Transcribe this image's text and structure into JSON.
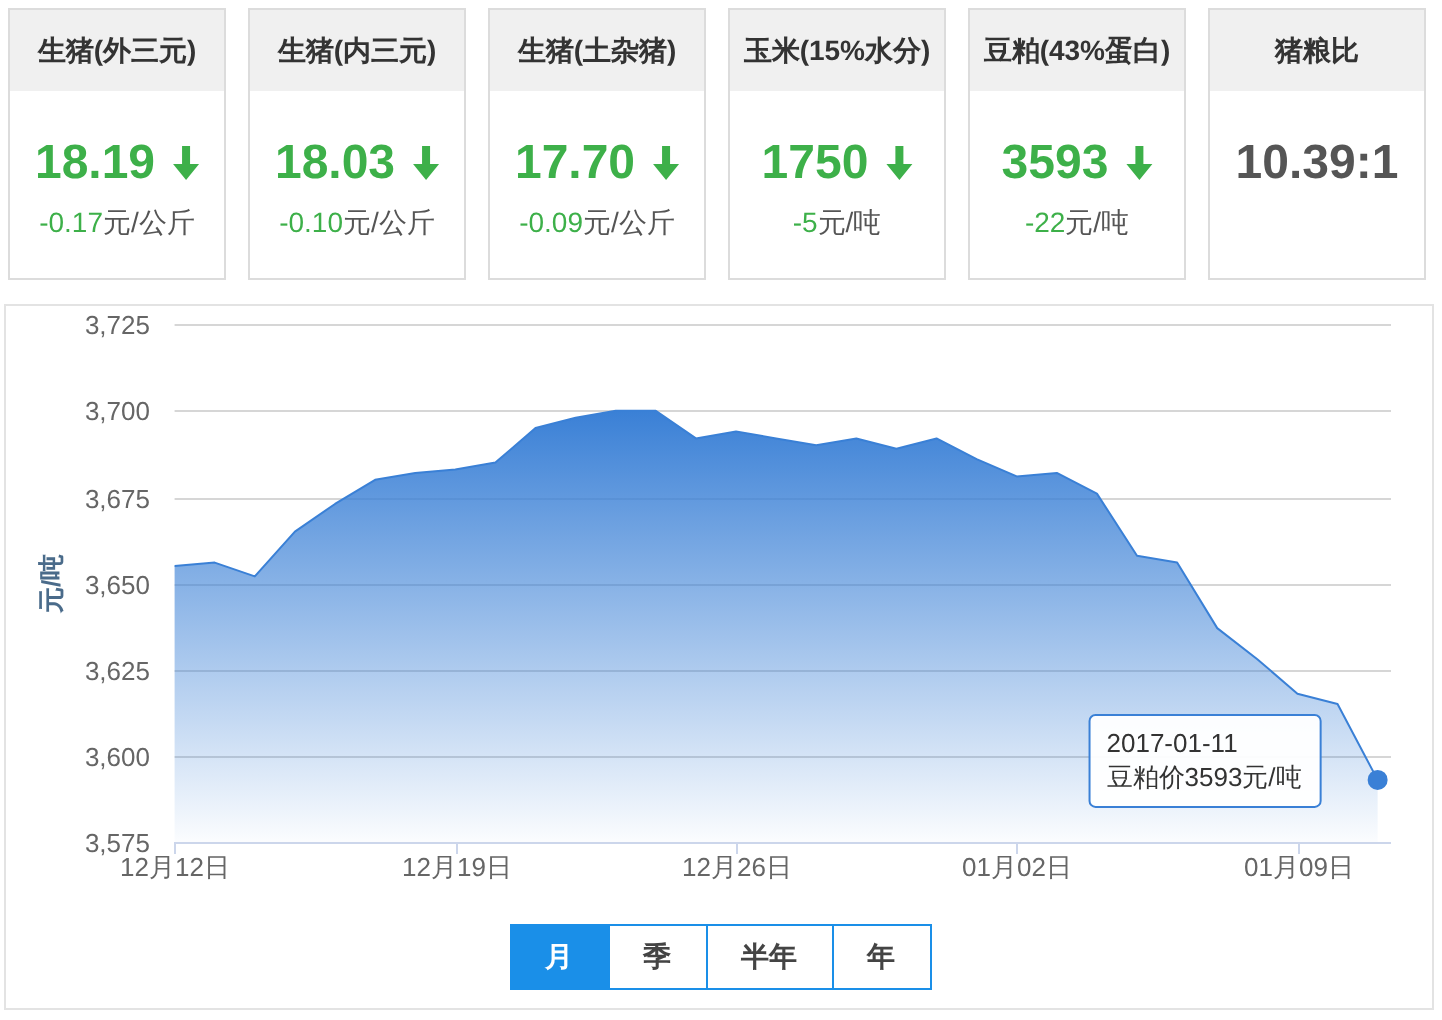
{
  "chart_data": [
    {
      "type": "other",
      "title": "生猪(外三元)",
      "annotations": [
        "18.19",
        "-0.17元/公斤"
      ]
    },
    {
      "type": "other",
      "title": "生猪(内三元)",
      "annotations": [
        "18.03",
        "-0.10元/公斤"
      ]
    },
    {
      "type": "other",
      "title": "生猪(土杂猪)",
      "annotations": [
        "17.70",
        "-0.09元/公斤"
      ]
    },
    {
      "type": "other",
      "title": "玉米(15%水分)",
      "annotations": [
        "1750",
        "-5元/吨"
      ]
    },
    {
      "type": "other",
      "title": "豆粕(43%蛋白)",
      "annotations": [
        "3593",
        "-22元/吨"
      ]
    },
    {
      "type": "other",
      "title": "猪粮比",
      "annotations": [
        "10.39:1"
      ]
    },
    {
      "type": "area",
      "ylabel": "元/吨",
      "x": [
        "2016-12-12",
        "2016-12-13",
        "2016-12-14",
        "2016-12-15",
        "2016-12-16",
        "2016-12-17",
        "2016-12-18",
        "2016-12-19",
        "2016-12-20",
        "2016-12-21",
        "2016-12-22",
        "2016-12-23",
        "2016-12-24",
        "2016-12-25",
        "2016-12-26",
        "2016-12-27",
        "2016-12-28",
        "2016-12-29",
        "2016-12-30",
        "2016-12-31",
        "2017-01-01",
        "2017-01-02",
        "2017-01-03",
        "2017-01-04",
        "2017-01-05",
        "2017-01-06",
        "2017-01-07",
        "2017-01-08",
        "2017-01-09",
        "2017-01-10",
        "2017-01-11"
      ],
      "series": [
        {
          "color": "#3a80d6",
          "values": [
            3655,
            3656,
            3652,
            3665,
            3673,
            3680,
            3682,
            3683,
            3685,
            3695,
            3698,
            3700,
            3700,
            3692,
            3694,
            3692,
            3690,
            3692,
            3689,
            3692,
            3686,
            3681,
            3682,
            3676,
            3658,
            3656,
            3637,
            3628,
            3618,
            3615,
            3593
          ]
        }
      ],
      "xlim": [
        "2016-12-12",
        "2017-01-11T08:00"
      ],
      "xticks": [
        {
          "value": "2016-12-12",
          "label": "12月12日"
        },
        {
          "value": "2016-12-19",
          "label": "12月19日"
        },
        {
          "value": "2016-12-26",
          "label": "12月26日"
        },
        {
          "value": "2017-01-02",
          "label": "01月02日"
        },
        {
          "value": "2017-01-09",
          "label": "01月09日"
        }
      ],
      "ylim": [
        3575,
        3725
      ],
      "yticks": [
        {
          "value": 3575,
          "label": "3,575"
        },
        {
          "value": 3600,
          "label": "3,600"
        },
        {
          "value": 3625,
          "label": "3,625"
        },
        {
          "value": 3650,
          "label": "3,650"
        },
        {
          "value": 3675,
          "label": "3,675"
        },
        {
          "value": 3700,
          "label": "3,700"
        },
        {
          "value": 3725,
          "label": "3,725"
        }
      ],
      "grid": "y",
      "annotations": [
        {
          "text": "2017-01-11\n豆粕价3593元/吨",
          "x": "2017-01-11",
          "y": 3593
        }
      ]
    },
    {
      "type": "other",
      "annotations": [
        "月",
        "季",
        "半年",
        "年"
      ]
    }
  ]
}
